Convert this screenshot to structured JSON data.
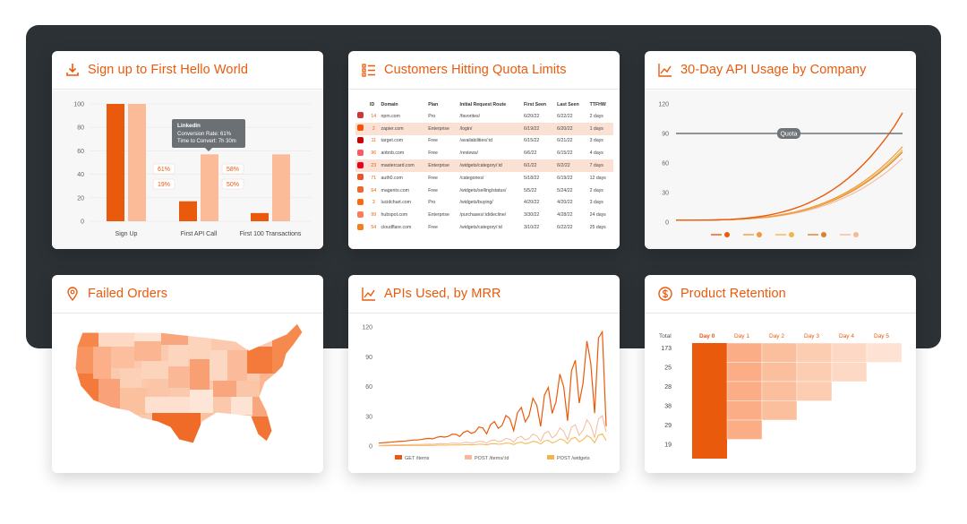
{
  "colors": {
    "accent": "#ea5a0c",
    "accent_light": "#fbbb99",
    "accent_pale": "#fde2d3",
    "backdrop": "#2c3136"
  },
  "signup": {
    "title": "Sign up to First Hello World",
    "icon": "download-icon",
    "y_ticks": [
      "100",
      "80",
      "60",
      "40",
      "20",
      "0"
    ],
    "categories": [
      "Sign Up",
      "First API Call",
      "First 100 Transactions"
    ],
    "series_a": [
      100,
      17,
      7
    ],
    "series_b": [
      100,
      57,
      57
    ],
    "labels": [
      "61%",
      "19%",
      "58%",
      "50%"
    ],
    "tooltip": {
      "title": "LinkedIn",
      "line1": "Conversion Rate: 61%",
      "line2": "Time to Convert: 7h 30m"
    }
  },
  "quota": {
    "title": "Customers Hitting Quota Limits",
    "icon": "list-icon",
    "columns": [
      "ID",
      "Domain",
      "Plan",
      "Initial Request Route",
      "First Seen",
      "Last Seen",
      "TTFHW"
    ],
    "rows": [
      {
        "logo": "npm",
        "color": "#cb3837",
        "id": "14",
        "domain": "npm.com",
        "plan": "Pro",
        "route": "/favorites/",
        "first": "6/20/22",
        "last": "6/22/22",
        "ttfhw": "2 days",
        "hl": false
      },
      {
        "logo": "zapier",
        "color": "#ff4f00",
        "id": "2",
        "domain": "zapier.com",
        "plan": "Enterprise",
        "route": "/login/",
        "first": "6/19/22",
        "last": "6/20/22",
        "ttfhw": "1 days",
        "hl": true
      },
      {
        "logo": "target",
        "color": "#cc0000",
        "id": "11",
        "domain": "target.com",
        "plan": "Free",
        "route": "/availabilities/:id",
        "first": "6/15/22",
        "last": "6/21/22",
        "ttfhw": "3 days",
        "hl": false
      },
      {
        "logo": "airbnb",
        "color": "#ff5a5f",
        "id": "96",
        "domain": "airbnb.com",
        "plan": "Free",
        "route": "/reviews/",
        "first": "6/6/22",
        "last": "6/15/22",
        "ttfhw": "4 days",
        "hl": false
      },
      {
        "logo": "mastercard",
        "color": "#eb001b",
        "id": "23",
        "domain": "mastercard.com",
        "plan": "Enterprise",
        "route": "/widgets/category/:id",
        "first": "6/1/22",
        "last": "6/2/22",
        "ttfhw": "7 days",
        "hl": true
      },
      {
        "logo": "auth0",
        "color": "#eb5424",
        "id": "71",
        "domain": "auth0.com",
        "plan": "Free",
        "route": "/categories/",
        "first": "5/18/22",
        "last": "6/19/22",
        "ttfhw": "12 days",
        "hl": false
      },
      {
        "logo": "magento",
        "color": "#ee672f",
        "id": "64",
        "domain": "magento.com",
        "plan": "Free",
        "route": "/widgets/selling/status/",
        "first": "5/5/22",
        "last": "5/24/22",
        "ttfhw": "2 days",
        "hl": false
      },
      {
        "logo": "lucidchart",
        "color": "#f96b13",
        "id": "3",
        "domain": "lucidchart.com",
        "plan": "Pro",
        "route": "/widgets/buying/",
        "first": "4/20/22",
        "last": "4/20/22",
        "ttfhw": "3 days",
        "hl": false
      },
      {
        "logo": "hubspot",
        "color": "#ff7a59",
        "id": "99",
        "domain": "hubspot.com",
        "plan": "Enterprise",
        "route": "/purchases/:id/decline/",
        "first": "3/30/22",
        "last": "4/28/22",
        "ttfhw": "24 days",
        "hl": false
      },
      {
        "logo": "cloudflare",
        "color": "#f38020",
        "id": "54",
        "domain": "cloudflare.com",
        "plan": "Free",
        "route": "/widgets/category/:id",
        "first": "3/10/22",
        "last": "6/22/22",
        "ttfhw": "25 days",
        "hl": false
      }
    ]
  },
  "usage": {
    "title": "30-Day API Usage by Company",
    "icon": "line-chart-icon",
    "y_ticks": [
      "120",
      "90",
      "60",
      "30",
      "0"
    ],
    "quota_label": "Quota",
    "quota_value": 90,
    "legend": [
      "mastercard",
      "walmart",
      "nike-swoosh",
      "ups",
      "airbnb"
    ]
  },
  "failed": {
    "title": "Failed Orders",
    "icon": "location-pin-icon"
  },
  "mrr": {
    "title": "APIs Used, by MRR",
    "icon": "line-chart-icon",
    "y_ticks": [
      "120",
      "90",
      "60",
      "30",
      "0"
    ],
    "legend": [
      "GET /items",
      "POST /items/:id",
      "POST /widgets"
    ]
  },
  "retention": {
    "title": "Product Retention",
    "icon": "dollar-circle-icon",
    "total_label": "Total",
    "days": [
      "Day 0",
      "Day 1",
      "Day 2",
      "Day 3",
      "Day 4",
      "Day 5"
    ],
    "totals": [
      "173",
      "25",
      "28",
      "38",
      "29",
      "19"
    ]
  }
}
